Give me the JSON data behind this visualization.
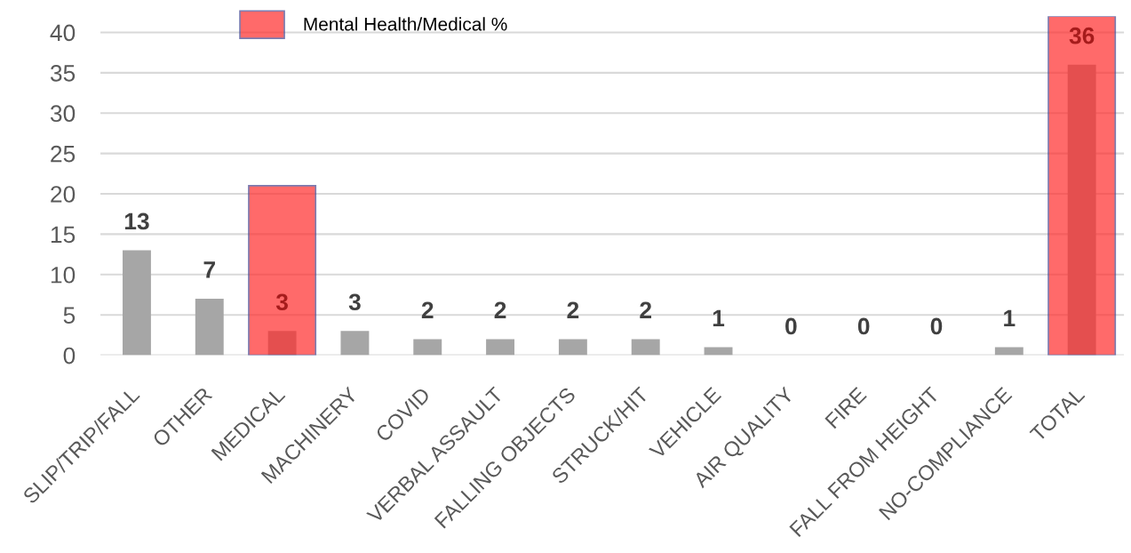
{
  "chart_data": {
    "type": "bar",
    "categories": [
      "SLIP/TRIP/FALL",
      "OTHER",
      "MEDICAL",
      "MACHINERY",
      "COVID",
      "VERBAL ASSAULT",
      "FALLING OBJECTS",
      "STRUCK/HIT",
      "VEHICLE",
      "AIR QUALITY",
      "FIRE",
      "FALL FROM HEIGHT",
      "NO-COMPLIANCE",
      "TOTAL"
    ],
    "series": [
      {
        "color": "#a6a6a6",
        "values": [
          13,
          7,
          3,
          3,
          2,
          2,
          2,
          2,
          1,
          0,
          0,
          0,
          1,
          36
        ],
        "value_labels": [
          "13",
          "7",
          "3",
          "3",
          "2",
          "2",
          "2",
          "2",
          "1",
          "0",
          "0",
          "0",
          "1",
          "36"
        ]
      },
      {
        "name": "Mental Health/Medical %",
        "color": "#ff6b6b",
        "values": [
          null,
          null,
          21,
          null,
          null,
          null,
          null,
          null,
          null,
          null,
          null,
          null,
          null,
          42
        ]
      }
    ],
    "ylim": [
      0,
      42
    ],
    "yticks": [
      0,
      5,
      10,
      15,
      20,
      25,
      30,
      35,
      40
    ],
    "grid": "y",
    "legend": "top left"
  }
}
